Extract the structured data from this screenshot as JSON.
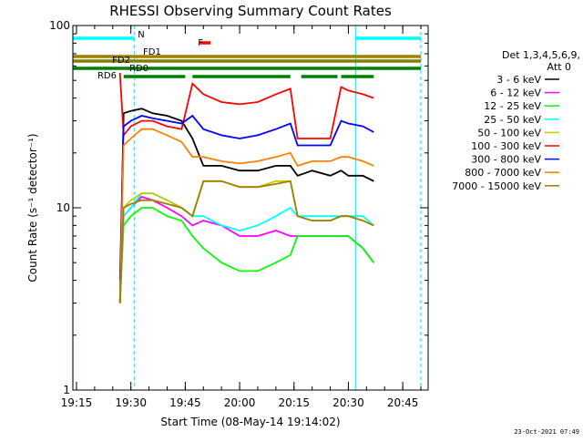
{
  "chart_data": {
    "type": "line",
    "title": "RHESSI Observing Summary Count Rates",
    "xlabel": "Start Time (08-May-14 19:14:02)",
    "ylabel": "Count Rate (s⁻¹ detector⁻¹)",
    "y_scale": "log",
    "ylim": [
      1,
      100
    ],
    "xlim": [
      "19:14",
      "20:52"
    ],
    "x_ticks": [
      "19:15",
      "19:30",
      "19:45",
      "20:00",
      "20:15",
      "20:30",
      "20:45"
    ],
    "y_ticks": [
      "1",
      "10",
      "100"
    ],
    "grid": false,
    "legend_placement": "right",
    "legend_header": [
      "Det 1,3,4,5,6,9,",
      "Att 0"
    ],
    "series": [
      {
        "name": "3 - 6 keV",
        "color": "#000000",
        "x": [
          "19:27",
          "19:28",
          "19:30",
          "19:33",
          "19:36",
          "19:40",
          "19:44",
          "19:47",
          "19:50",
          "19:55",
          "20:00",
          "20:05",
          "20:10",
          "20:14",
          "20:16",
          "20:20",
          "20:25",
          "20:28",
          "20:30",
          "20:34",
          "20:37"
        ],
        "y": [
          3,
          33,
          34,
          35,
          33,
          32,
          30,
          24,
          17,
          17,
          16,
          16,
          17,
          17,
          15,
          16,
          15,
          16,
          15,
          15,
          14
        ]
      },
      {
        "name": "6 - 12 keV",
        "color": "#ff00ff",
        "x": [
          "19:27",
          "19:28",
          "19:30",
          "19:33",
          "19:36",
          "19:40",
          "19:44",
          "19:47",
          "19:50",
          "19:55",
          "20:00",
          "20:05",
          "20:10",
          "20:14",
          "20:16",
          "20:20",
          "20:25",
          "20:28",
          "20:30",
          "20:34",
          "20:37"
        ],
        "y": [
          3,
          9,
          10,
          11.5,
          11,
          10,
          9,
          8,
          8.5,
          8,
          7,
          7,
          7.5,
          7,
          7,
          7,
          7,
          7,
          7,
          6,
          5
        ]
      },
      {
        "name": "12 - 25 keV",
        "color": "#00ff00",
        "x": [
          "19:27",
          "19:28",
          "19:30",
          "19:33",
          "19:36",
          "19:40",
          "19:44",
          "19:47",
          "19:50",
          "19:55",
          "20:00",
          "20:05",
          "20:10",
          "20:14",
          "20:16",
          "20:20",
          "20:25",
          "20:28",
          "20:30",
          "20:34",
          "20:37"
        ],
        "y": [
          3,
          8,
          9,
          10,
          10,
          9,
          8.5,
          7,
          6,
          5,
          4.5,
          4.5,
          5,
          5.5,
          7,
          7,
          7,
          7,
          7,
          6,
          5
        ]
      },
      {
        "name": "25 - 50 keV",
        "color": "#00ffff",
        "x": [
          "19:27",
          "19:28",
          "19:30",
          "19:33",
          "19:36",
          "19:40",
          "19:44",
          "19:47",
          "19:50",
          "19:55",
          "20:00",
          "20:05",
          "20:10",
          "20:14",
          "20:16",
          "20:20",
          "20:25",
          "20:28",
          "20:30",
          "20:34",
          "20:37"
        ],
        "y": [
          3,
          9,
          10,
          12,
          12,
          11,
          10,
          9,
          9,
          8,
          7.5,
          8,
          9,
          10,
          9,
          9,
          9,
          9,
          9,
          9,
          8
        ]
      },
      {
        "name": "50 - 100 keV",
        "color": "#c8c800",
        "x": [
          "19:27",
          "19:28",
          "19:30",
          "19:33",
          "19:36",
          "19:40",
          "19:44",
          "19:47",
          "19:50",
          "19:55",
          "20:00",
          "20:05",
          "20:10",
          "20:14",
          "20:16",
          "20:20",
          "20:25",
          "20:28",
          "20:30",
          "20:34",
          "20:37"
        ],
        "y": [
          3,
          10,
          11,
          12,
          12,
          11,
          10,
          9,
          14,
          14,
          13,
          13,
          14,
          14,
          9,
          8.5,
          8.5,
          9,
          9,
          8.5,
          8
        ]
      },
      {
        "name": "100 - 300 keV",
        "color": "#ff0000",
        "x": [
          "19:27",
          "19:28",
          "19:30",
          "19:33",
          "19:36",
          "19:40",
          "19:44",
          "19:47",
          "19:50",
          "19:55",
          "20:00",
          "20:05",
          "20:10",
          "20:14",
          "20:16",
          "20:20",
          "20:25",
          "20:28",
          "20:30",
          "20:34",
          "20:37"
        ],
        "y": [
          55,
          25,
          28,
          30,
          30,
          28,
          27,
          48,
          42,
          38,
          37,
          38,
          42,
          45,
          24,
          24,
          24,
          46,
          44,
          42,
          40
        ]
      },
      {
        "name": "300 - 800 keV",
        "color": "#0000ff",
        "x": [
          "19:27",
          "19:28",
          "19:30",
          "19:33",
          "19:36",
          "19:40",
          "19:44",
          "19:47",
          "19:50",
          "19:55",
          "20:00",
          "20:05",
          "20:10",
          "20:14",
          "20:16",
          "20:20",
          "20:25",
          "20:28",
          "20:30",
          "20:34",
          "20:37"
        ],
        "y": [
          4,
          28,
          30,
          32,
          31,
          30,
          29,
          32,
          27,
          25,
          24,
          25,
          27,
          29,
          22,
          22,
          22,
          30,
          29,
          28,
          26
        ]
      },
      {
        "name": "800 - 7000 keV",
        "color": "#ff8000",
        "x": [
          "19:27",
          "19:28",
          "19:30",
          "19:33",
          "19:36",
          "19:40",
          "19:44",
          "19:47",
          "19:50",
          "19:55",
          "20:00",
          "20:05",
          "20:10",
          "20:14",
          "20:16",
          "20:20",
          "20:25",
          "20:28",
          "20:30",
          "20:34",
          "20:37"
        ],
        "y": [
          3,
          22,
          24,
          27,
          27,
          25,
          23,
          19,
          19,
          18,
          17.5,
          18,
          19,
          20,
          17,
          18,
          18,
          19,
          19,
          18,
          17
        ]
      },
      {
        "name": "7000 - 15000 keV",
        "color": "#a08000",
        "x": [
          "19:27",
          "19:28",
          "19:30",
          "19:33",
          "19:36",
          "19:40",
          "19:44",
          "19:47",
          "19:50",
          "19:55",
          "20:00",
          "20:05",
          "20:10",
          "20:14",
          "20:16",
          "20:20",
          "20:25",
          "20:28",
          "20:30",
          "20:34",
          "20:37"
        ],
        "y": [
          3,
          10,
          10.5,
          11,
          11,
          10.5,
          10,
          9,
          14,
          14,
          13,
          13,
          13.5,
          14,
          9,
          8.5,
          8.5,
          9,
          9,
          8.5,
          8
        ]
      }
    ],
    "state_bars": [
      {
        "label": "N",
        "color": "#00ffff",
        "intervals": [
          [
            "19:14",
            "19:31"
          ],
          [
            "20:32",
            "20:50"
          ]
        ]
      },
      {
        "label": "F",
        "color": "#ff0000",
        "intervals": [
          [
            "19:49",
            "19:52"
          ]
        ]
      },
      {
        "label": "FD1",
        "color": "#a08000",
        "intervals": [
          [
            "19:14",
            "20:50"
          ]
        ]
      },
      {
        "label": "FD2",
        "color": "#808000",
        "intervals": [
          [
            "19:14",
            "20:50"
          ]
        ]
      },
      {
        "label": "RD0",
        "color": "#008000",
        "intervals": [
          [
            "19:14",
            "20:50"
          ]
        ]
      },
      {
        "label": "RD6",
        "color": "#008000",
        "intervals": [
          [
            "19:28",
            "19:45"
          ],
          [
            "19:47",
            "20:14"
          ],
          [
            "20:17",
            "20:27"
          ],
          [
            "20:28",
            "20:37"
          ]
        ]
      }
    ],
    "vlines": [
      {
        "x": "19:14",
        "style": "solid",
        "color": "#00ffff"
      },
      {
        "x": "19:31",
        "style": "dashed",
        "color": "#00ffff"
      },
      {
        "x": "20:32",
        "style": "solid",
        "color": "#00ffff"
      },
      {
        "x": "20:50",
        "style": "dashed",
        "color": "#00ffff"
      }
    ]
  },
  "footer_date": "23-Oct-2021 07:49"
}
